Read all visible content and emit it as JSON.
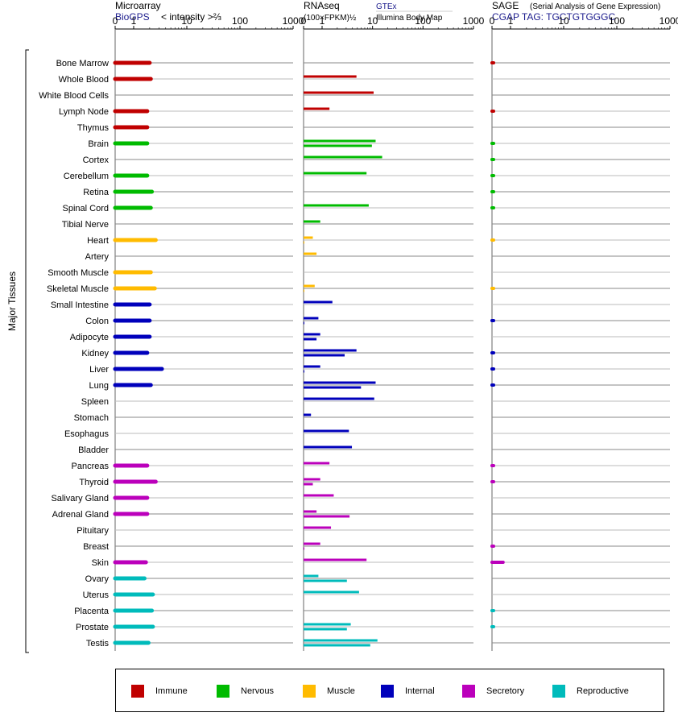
{
  "colors": {
    "immune": "#c00000",
    "nervous": "#00bb00",
    "muscle": "#ffbb00",
    "internal": "#0000bb",
    "secretory": "#bb00bb",
    "reproductive": "#00bbbb"
  },
  "headers": {
    "microarray_title": "Microarray",
    "microarray_source": "BioGPS",
    "microarray_unit": "< intensity >⅔",
    "rnaseq_title": "RNAseq",
    "rnaseq_unit": "(100×FPKM)½",
    "rnaseq_source_top": "GTEx",
    "rnaseq_source_bottom": "Illumina Body Map",
    "sage_title": "SAGE",
    "sage_desc": "(Serial Analysis of Gene Expression)",
    "sage_source": "CGAP  TAG: TGCTGTGGGC"
  },
  "y_axis_label": "Major Tissues",
  "legend": [
    {
      "key": "immune",
      "label": "Immune"
    },
    {
      "key": "nervous",
      "label": "Nervous"
    },
    {
      "key": "muscle",
      "label": "Muscle"
    },
    {
      "key": "internal",
      "label": "Internal"
    },
    {
      "key": "secretory",
      "label": "Secretory"
    },
    {
      "key": "reproductive",
      "label": "Reproductive"
    }
  ],
  "chart_data": {
    "type": "bar",
    "x_ticks": [
      "0",
      "1",
      "10",
      "100",
      "1000"
    ],
    "x_tick_values": [
      0,
      1,
      10,
      100,
      1000
    ],
    "categories": [
      "Bone Marrow",
      "Whole Blood",
      "White Blood Cells",
      "Lymph Node",
      "Thymus",
      "Brain",
      "Cortex",
      "Cerebellum",
      "Retina",
      "Spinal Cord",
      "Tibial Nerve",
      "Heart",
      "Artery",
      "Smooth Muscle",
      "Skeletal Muscle",
      "Small Intestine",
      "Colon",
      "Adipocyte",
      "Kidney",
      "Liver",
      "Lung",
      "Spleen",
      "Stomach",
      "Esophagus",
      "Bladder",
      "Pancreas",
      "Thyroid",
      "Salivary Gland",
      "Adrenal Gland",
      "Pituitary",
      "Breast",
      "Skin",
      "Ovary",
      "Uterus",
      "Placenta",
      "Prostate",
      "Testis"
    ],
    "groups": [
      "immune",
      "immune",
      "immune",
      "immune",
      "immune",
      "nervous",
      "nervous",
      "nervous",
      "nervous",
      "nervous",
      "nervous",
      "muscle",
      "muscle",
      "muscle",
      "muscle",
      "internal",
      "internal",
      "internal",
      "internal",
      "internal",
      "internal",
      "internal",
      "internal",
      "internal",
      "internal",
      "secretory",
      "secretory",
      "secretory",
      "secretory",
      "secretory",
      "secretory",
      "secretory",
      "reproductive",
      "reproductive",
      "reproductive",
      "reproductive",
      "reproductive"
    ],
    "series": [
      {
        "name": "Microarray",
        "values": [
          2.0,
          2.1,
          null,
          1.8,
          1.8,
          1.8,
          null,
          1.8,
          2.2,
          2.1,
          null,
          2.6,
          null,
          2.1,
          2.5,
          2.0,
          2.0,
          2.0,
          1.8,
          3.4,
          2.1,
          null,
          null,
          null,
          null,
          1.8,
          2.6,
          1.8,
          1.8,
          null,
          null,
          1.7,
          1.6,
          2.3,
          2.2,
          2.3,
          1.9
        ]
      },
      {
        "name": "GTEx",
        "values": [
          null,
          4.8,
          10.5,
          1.4,
          null,
          11.5,
          15.5,
          7.6,
          null,
          8.4,
          0.9,
          0.5,
          0.7,
          null,
          0.6,
          1.6,
          0.8,
          0.9,
          4.8,
          0.9,
          11.5,
          10.8,
          0.4,
          3.4,
          3.9,
          1.4,
          0.9,
          1.7,
          0.7,
          1.5,
          0.9,
          7.6,
          0.8,
          5.4,
          null,
          3.7,
          12.5
        ]
      },
      {
        "name": "Illumina Body Map",
        "values": [
          null,
          null,
          null,
          null,
          null,
          9.7,
          null,
          null,
          null,
          null,
          null,
          0.02,
          null,
          null,
          0.02,
          null,
          0.02,
          0.7,
          2.8,
          0.02,
          5.9,
          null,
          null,
          null,
          null,
          null,
          0.5,
          null,
          3.5,
          null,
          0.02,
          null,
          3.1,
          null,
          null,
          3.1,
          9.0
        ]
      },
      {
        "name": "SAGE",
        "values": [
          0.02,
          null,
          null,
          0.02,
          null,
          0.02,
          0.02,
          0.02,
          0.02,
          0.02,
          null,
          0.02,
          null,
          null,
          0.02,
          null,
          0.02,
          null,
          0.02,
          0.02,
          0.02,
          null,
          null,
          null,
          null,
          0.02,
          0.02,
          null,
          null,
          null,
          0.02,
          0.6,
          null,
          null,
          0.02,
          0.02,
          null
        ]
      }
    ]
  }
}
